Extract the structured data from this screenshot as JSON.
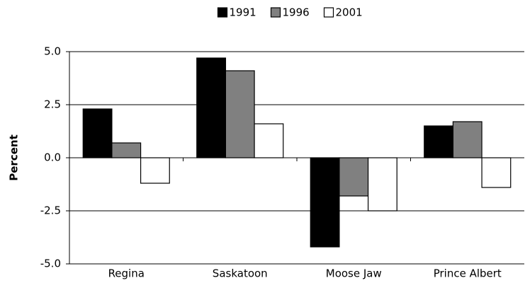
{
  "chart_data": {
    "type": "bar",
    "y_label": "Percent",
    "categories": [
      "Regina",
      "Saskatoon",
      "Moose Jaw",
      "Prince Albert"
    ],
    "series": [
      {
        "name": "1991",
        "color": "#000000",
        "values": [
          2.3,
          4.7,
          -4.2,
          1.5
        ]
      },
      {
        "name": "1996",
        "color": "#808080",
        "values": [
          0.7,
          4.1,
          -1.8,
          1.7
        ]
      },
      {
        "name": "2001",
        "color": "#ffffff",
        "values": [
          -1.2,
          1.6,
          -2.5,
          -1.4
        ]
      }
    ],
    "ylim": [
      -5,
      5
    ],
    "yticks": [
      {
        "value": -5,
        "label": "-5.0"
      },
      {
        "value": -2.5,
        "label": "-2.5"
      },
      {
        "value": 0,
        "label": "0.0"
      },
      {
        "value": 2.5,
        "label": "2.5"
      },
      {
        "value": 5,
        "label": "5.0"
      }
    ],
    "grid": true,
    "legend": "top"
  }
}
